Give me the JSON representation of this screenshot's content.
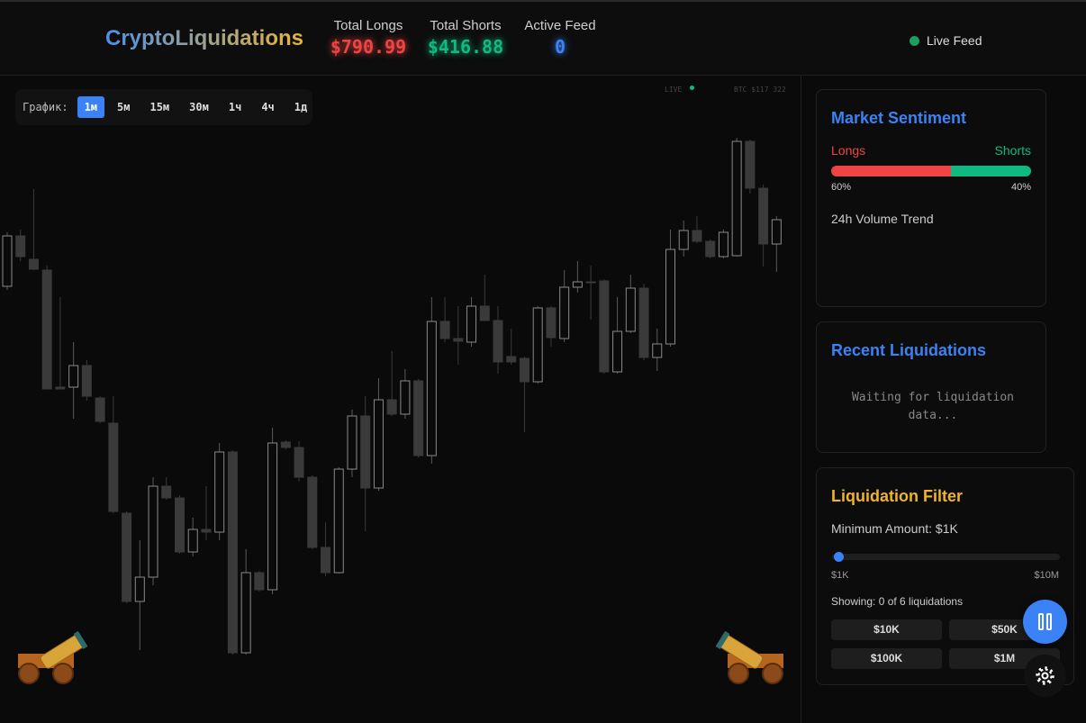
{
  "header": {
    "title": "CryptoLiquidations",
    "stats": [
      {
        "label": "Total Longs",
        "value": "$790.99",
        "color": "#ef4444"
      },
      {
        "label": "Total Shorts",
        "value": "$416.88",
        "color": "#10b981"
      },
      {
        "label": "Active Feed",
        "value": "0",
        "color": "#3b82f6"
      }
    ],
    "status": "Live Feed"
  },
  "chart_toolbar": {
    "label": "График:",
    "timeframes": [
      "1м",
      "5м",
      "15м",
      "30м",
      "1ч",
      "4ч",
      "1д"
    ],
    "active": "1м"
  },
  "chart_data": {
    "type": "candlestick",
    "live_label": "LIVE",
    "ticker": "BTC $117 322",
    "ylim": [
      60,
      680
    ],
    "up_color": "#8a8a8a",
    "down_color": "#3a3a3a",
    "candles": [
      [
        485,
        545,
        481,
        541
      ],
      [
        541,
        548,
        513,
        518
      ],
      [
        515,
        593,
        503,
        504
      ],
      [
        503,
        508,
        371,
        371
      ],
      [
        373,
        473,
        371,
        371
      ],
      [
        373,
        423,
        338,
        397
      ],
      [
        397,
        403,
        358,
        363
      ],
      [
        361,
        363,
        333,
        335
      ],
      [
        333,
        363,
        233,
        235
      ],
      [
        233,
        235,
        133,
        135
      ],
      [
        135,
        203,
        81,
        162
      ],
      [
        162,
        273,
        153,
        263
      ],
      [
        263,
        273,
        248,
        250
      ],
      [
        250,
        253,
        188,
        190
      ],
      [
        190,
        228,
        185,
        215
      ],
      [
        215,
        263,
        203,
        212
      ],
      [
        212,
        311,
        203,
        301
      ],
      [
        301,
        303,
        76,
        78
      ],
      [
        78,
        193,
        76,
        167
      ],
      [
        167,
        169,
        146,
        148
      ],
      [
        148,
        328,
        143,
        311
      ],
      [
        312,
        314,
        304,
        306
      ],
      [
        306,
        313,
        268,
        273
      ],
      [
        273,
        275,
        193,
        195
      ],
      [
        195,
        223,
        163,
        167
      ],
      [
        167,
        284,
        166,
        282
      ],
      [
        282,
        348,
        273,
        341
      ],
      [
        341,
        363,
        213,
        261
      ],
      [
        261,
        383,
        258,
        359
      ],
      [
        359,
        413,
        341,
        343
      ],
      [
        343,
        393,
        338,
        380
      ],
      [
        380,
        382,
        295,
        297
      ],
      [
        297,
        473,
        288,
        446
      ],
      [
        446,
        473,
        423,
        427
      ],
      [
        427,
        463,
        398,
        424
      ],
      [
        423,
        473,
        418,
        463
      ],
      [
        463,
        498,
        447,
        447
      ],
      [
        447,
        463,
        388,
        401
      ],
      [
        407,
        438,
        398,
        401
      ],
      [
        405,
        407,
        323,
        379
      ],
      [
        379,
        463,
        377,
        461
      ],
      [
        461,
        463,
        418,
        428
      ],
      [
        427,
        503,
        423,
        484
      ],
      [
        484,
        513,
        478,
        490
      ],
      [
        490,
        508,
        448,
        489
      ],
      [
        491,
        493,
        388,
        390
      ],
      [
        390,
        473,
        388,
        435
      ],
      [
        435,
        498,
        433,
        483
      ],
      [
        483,
        488,
        403,
        406
      ],
      [
        406,
        438,
        391,
        421
      ],
      [
        421,
        548,
        418,
        526
      ],
      [
        526,
        558,
        518,
        547
      ],
      [
        547,
        563,
        533,
        535
      ],
      [
        535,
        537,
        516,
        518
      ],
      [
        518,
        548,
        516,
        545
      ],
      [
        519,
        650,
        518,
        646
      ],
      [
        646,
        648,
        588,
        594
      ],
      [
        594,
        598,
        507,
        532
      ],
      [
        532,
        563,
        501,
        559
      ]
    ]
  },
  "sentiment": {
    "title": "Market Sentiment",
    "names": [
      "Longs",
      "Shorts"
    ],
    "colors": [
      "#ef4444",
      "#10b981"
    ],
    "values": [
      60,
      40
    ],
    "value_labels": [
      "60%",
      "40%"
    ],
    "trend_label": "24h Volume Trend"
  },
  "recent": {
    "title": "Recent Liquidations",
    "empty": "Waiting for liquidation data..."
  },
  "filter": {
    "title": "Liquidation Filter",
    "minimum": "Minimum Amount: $1K",
    "range": [
      "$1K",
      "$10M"
    ],
    "showing": "Showing: 0 of 6 liquidations",
    "presets": [
      "$10K",
      "$50K",
      "$100K",
      "$1M"
    ]
  }
}
